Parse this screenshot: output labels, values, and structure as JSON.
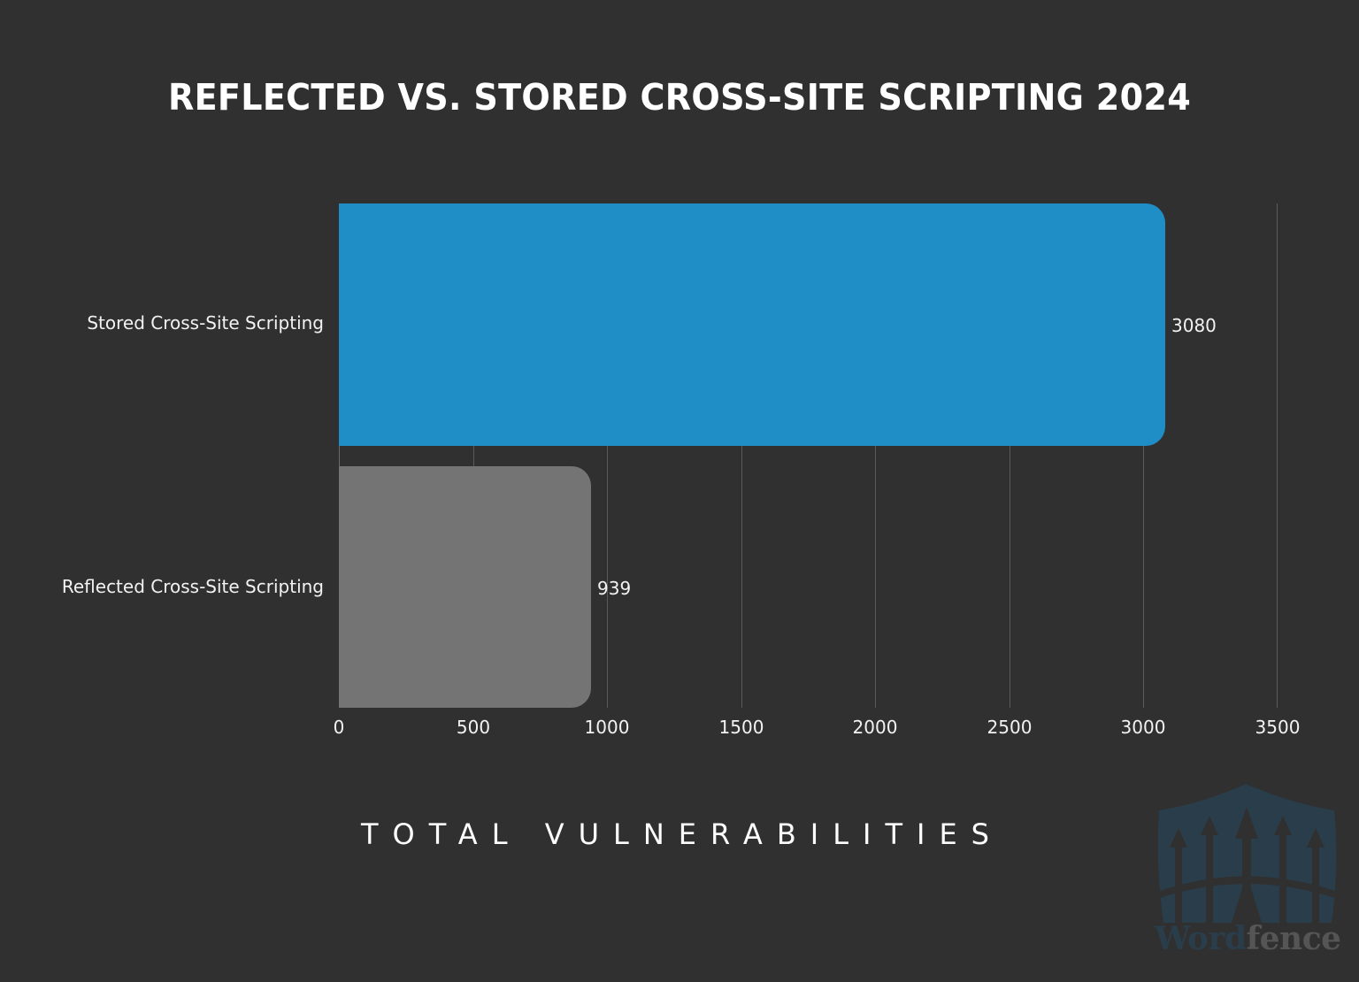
{
  "title": "REFLECTED VS. STORED CROSS-SITE SCRIPTING 2024",
  "xlabel": "TOTAL VULNERABILITIES",
  "logo": {
    "word": "Word",
    "fence": "fence",
    "icon": "wordfence-shield-icon"
  },
  "colors": {
    "background": "#303030",
    "stored": "#208ec6",
    "reflected": "#747474",
    "gridline": "#5a5a5a",
    "logo_blue": "#2a3d4a",
    "logo_gray": "#555555"
  },
  "chart_data": {
    "type": "bar",
    "orientation": "horizontal",
    "title": "REFLECTED VS. STORED CROSS-SITE SCRIPTING 2024",
    "xlabel": "TOTAL VULNERABILITIES",
    "ylabel": "",
    "categories": [
      "Stored Cross-Site Scripting",
      "Reflected Cross-Site Scripting"
    ],
    "values": [
      3080,
      939
    ],
    "bar_colors": [
      "#208ec6",
      "#747474"
    ],
    "data_labels": [
      "3080",
      "939"
    ],
    "xlim": [
      0,
      3500
    ],
    "xticks": [
      "0",
      "500",
      "1000",
      "1500",
      "2000",
      "2500",
      "3000",
      "3500"
    ],
    "grid": "vertical",
    "legend": "none"
  }
}
